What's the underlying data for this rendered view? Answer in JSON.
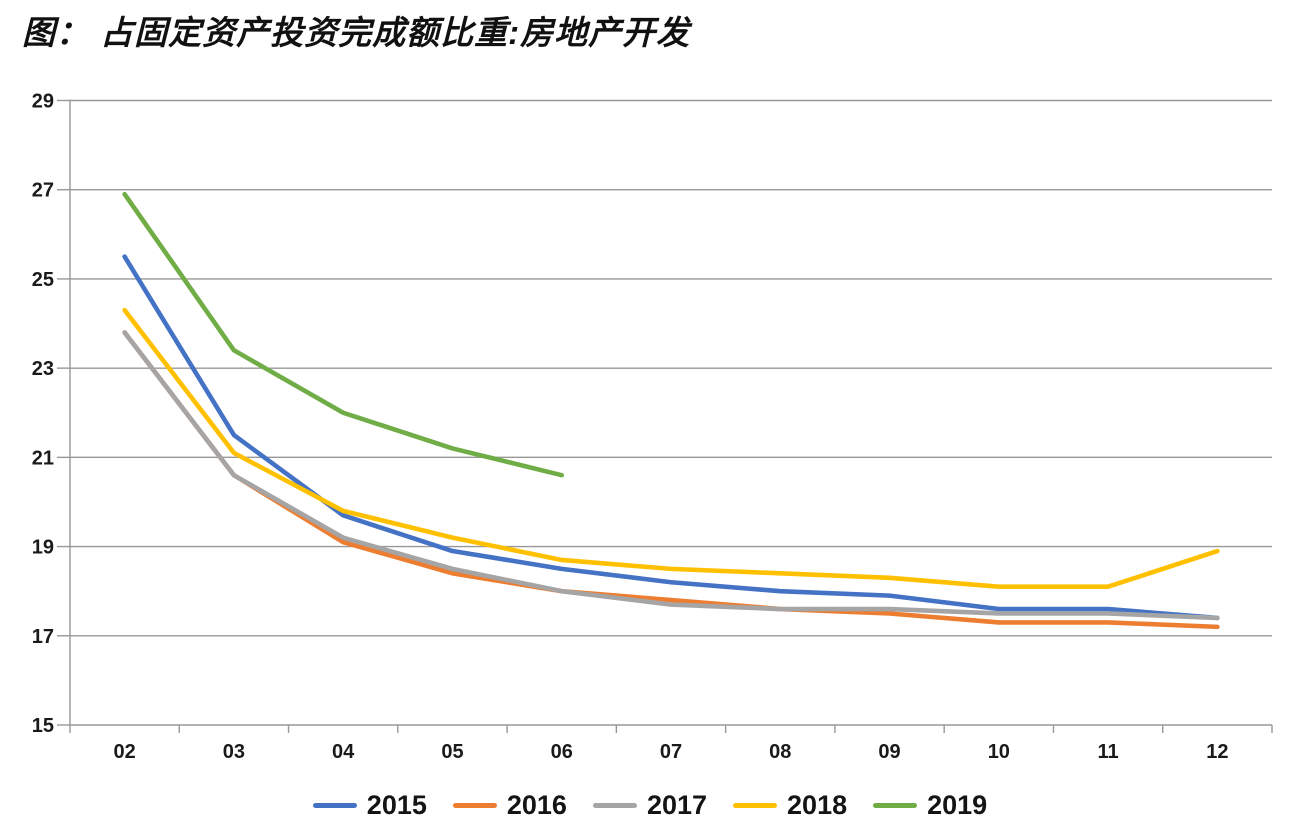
{
  "title": "图： 占固定资产投资完成额比重:房地产开发",
  "chart_data": {
    "type": "line",
    "categories": [
      "02",
      "03",
      "04",
      "05",
      "06",
      "07",
      "08",
      "09",
      "10",
      "11",
      "12"
    ],
    "series": [
      {
        "name": "2015",
        "color": "#4472C4",
        "values": [
          25.5,
          21.5,
          19.7,
          18.9,
          18.5,
          18.2,
          18.0,
          17.9,
          17.6,
          17.6,
          17.4
        ]
      },
      {
        "name": "2016",
        "color": "#ED7D31",
        "values": [
          23.8,
          20.6,
          19.1,
          18.4,
          18.0,
          17.8,
          17.6,
          17.5,
          17.3,
          17.3,
          17.2
        ]
      },
      {
        "name": "2017",
        "color": "#A5A5A5",
        "values": [
          23.8,
          20.6,
          19.2,
          18.5,
          18.0,
          17.7,
          17.6,
          17.6,
          17.5,
          17.5,
          17.4
        ]
      },
      {
        "name": "2018",
        "color": "#FFC000",
        "values": [
          24.3,
          21.1,
          19.8,
          19.2,
          18.7,
          18.5,
          18.4,
          18.3,
          18.1,
          18.1,
          18.9
        ]
      },
      {
        "name": "2019",
        "color": "#70AD47",
        "values": [
          26.9,
          23.4,
          22.0,
          21.2,
          20.6,
          null,
          null,
          null,
          null,
          null,
          null
        ]
      }
    ],
    "ylim": [
      15,
      29
    ],
    "y_ticks": [
      15,
      17,
      19,
      21,
      23,
      25,
      27,
      29
    ],
    "grid": true,
    "legend_position": "bottom",
    "axis_color": "#989898",
    "label_color": "#1a1a1a"
  }
}
